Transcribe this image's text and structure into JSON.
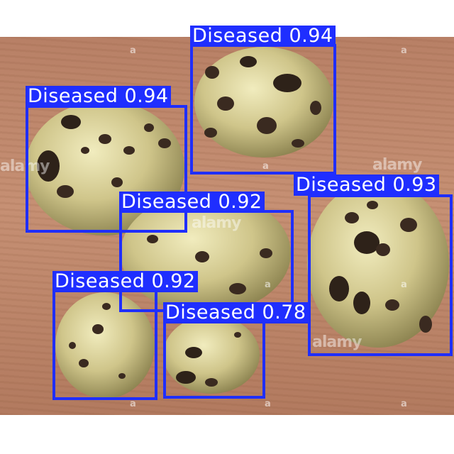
{
  "image": {
    "description_colors": {
      "box": "#1f2eff",
      "label_text": "#ffffff",
      "board": "#c69074"
    }
  },
  "detections": [
    {
      "label": "Diseased",
      "score": "0.94"
    },
    {
      "label": "Diseased",
      "score": "0.94"
    },
    {
      "label": "Diseased",
      "score": "0.93"
    },
    {
      "label": "Diseased",
      "score": "0.92"
    },
    {
      "label": "Diseased",
      "score": "0.92"
    },
    {
      "label": "Diseased",
      "score": "0.78"
    }
  ],
  "watermark": {
    "text": "alamy",
    "mark": "a"
  }
}
